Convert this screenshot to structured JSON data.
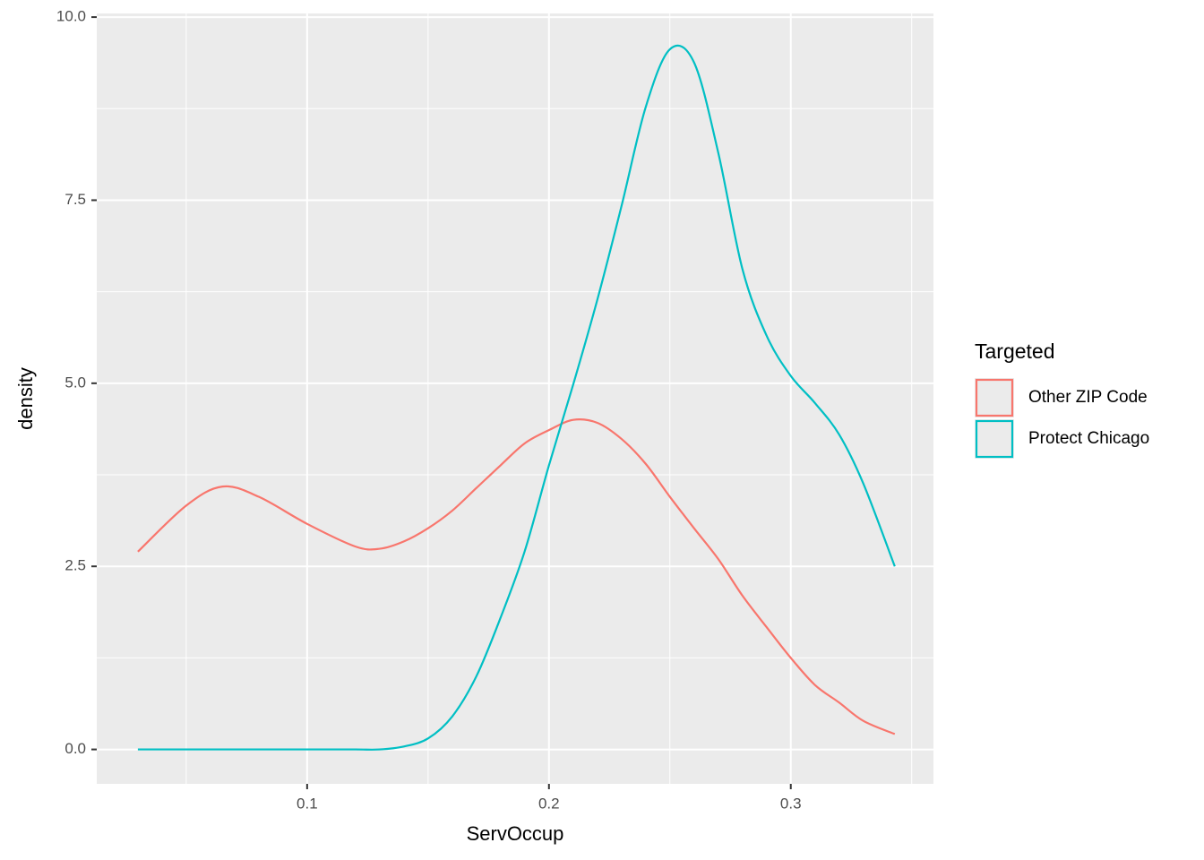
{
  "chart_data": {
    "type": "line",
    "x_label": "ServOccup",
    "y_label": "density",
    "legend_title": "Targeted",
    "legend_position": "right",
    "grid": true,
    "xlim": [
      0.013,
      0.359
    ],
    "ylim": [
      -0.47,
      10.05
    ],
    "xticks": [
      0.1,
      0.2,
      0.3
    ],
    "yticks": [
      {
        "value": 0,
        "label": "0.0"
      },
      2.5,
      {
        "value": 5,
        "label": "5.0"
      },
      7.5,
      {
        "value": 10,
        "label": "10.0"
      }
    ],
    "x_minor_ticks": [
      0.05,
      0.15,
      0.25,
      0.35
    ],
    "y_minor_ticks": [
      1.25,
      3.75,
      6.25,
      8.75
    ],
    "x": [
      0.03,
      0.05,
      0.065,
      0.08,
      0.1,
      0.12,
      0.13,
      0.14,
      0.15,
      0.16,
      0.17,
      0.18,
      0.19,
      0.2,
      0.21,
      0.22,
      0.23,
      0.24,
      0.25,
      0.26,
      0.27,
      0.28,
      0.29,
      0.3,
      0.31,
      0.32,
      0.33,
      0.343
    ],
    "series": [
      {
        "name": "Other ZIP Code",
        "color": "#f8766d",
        "values": [
          2.7,
          3.33,
          3.59,
          3.45,
          3.08,
          2.77,
          2.74,
          2.84,
          3.02,
          3.26,
          3.57,
          3.88,
          4.18,
          4.36,
          4.5,
          4.46,
          4.24,
          3.9,
          3.45,
          3.02,
          2.6,
          2.1,
          1.67,
          1.25,
          0.88,
          0.64,
          0.39,
          0.21
        ]
      },
      {
        "name": "Protect Chicago",
        "color": "#00bfc4",
        "values": [
          0,
          0,
          0,
          0,
          0,
          0,
          0,
          0.04,
          0.15,
          0.45,
          1.0,
          1.8,
          2.71,
          3.88,
          4.98,
          6.14,
          7.42,
          8.77,
          9.56,
          9.38,
          8.15,
          6.56,
          5.65,
          5.1,
          4.73,
          4.3,
          3.63,
          2.5
        ]
      }
    ]
  }
}
